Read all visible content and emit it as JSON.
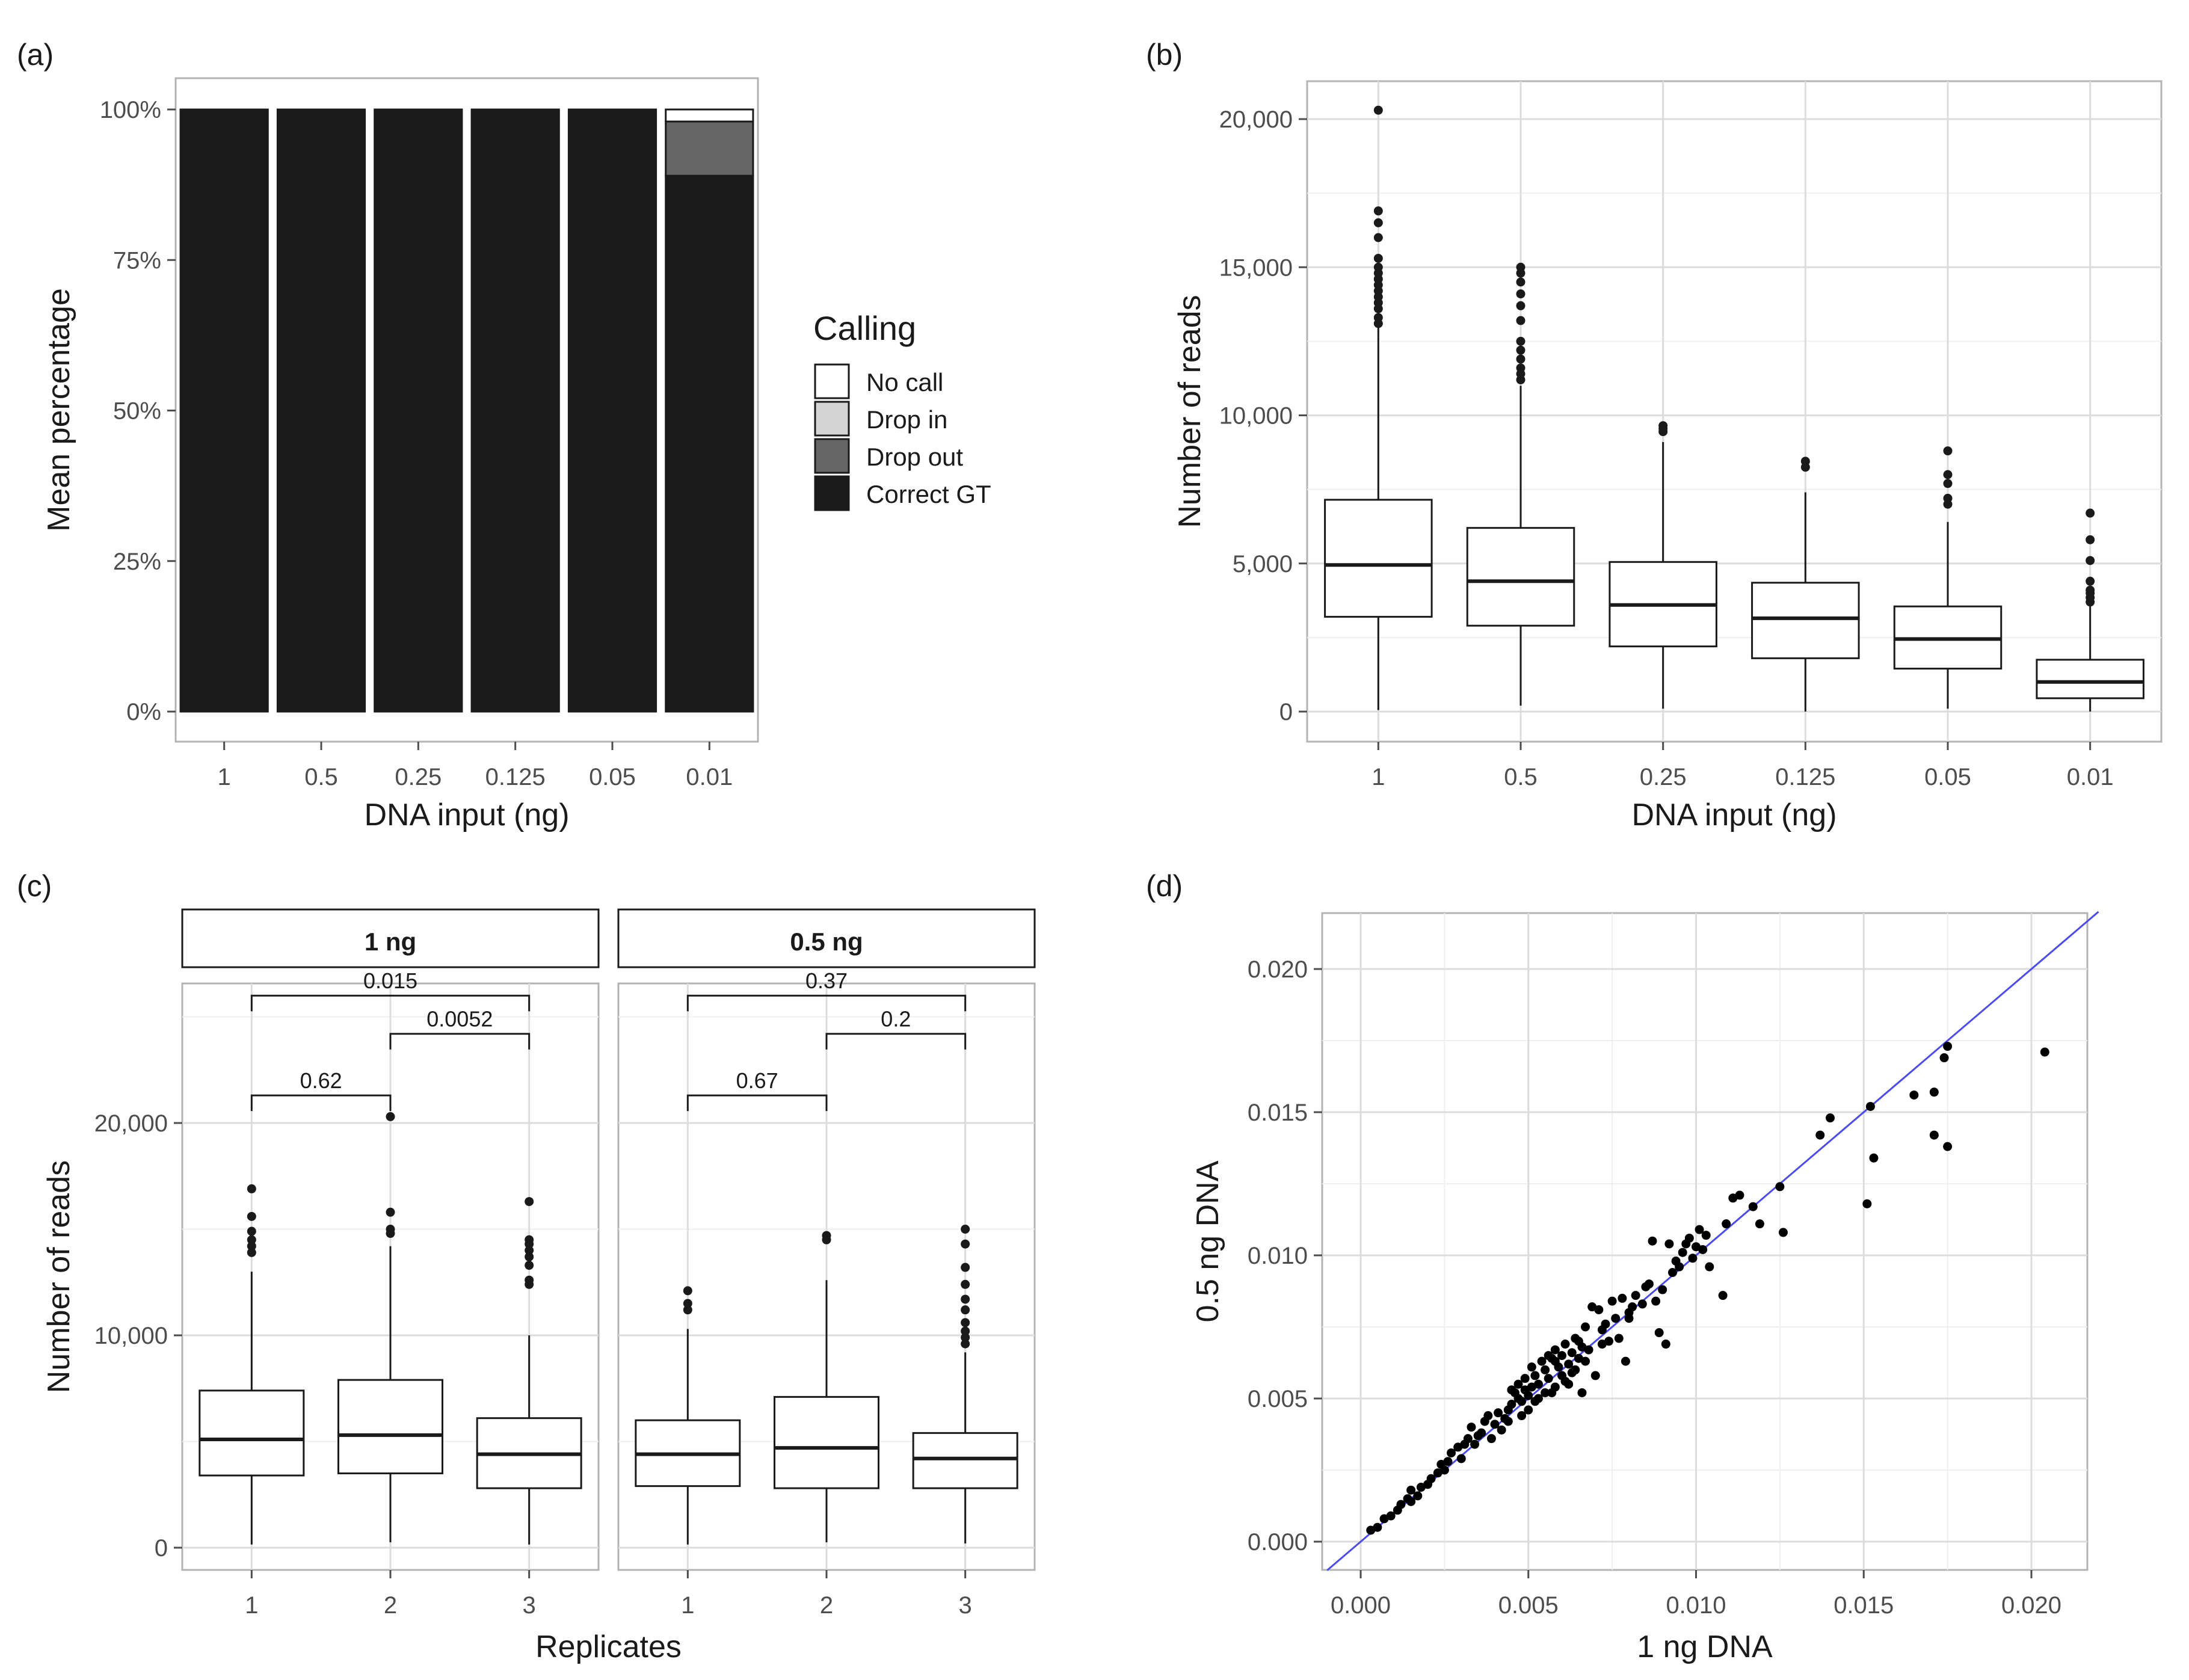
{
  "chart_data": [
    {
      "panel": "(a)",
      "type": "bar",
      "stacked": true,
      "xlabel": "DNA input (ng)",
      "ylabel": "Mean percentage",
      "categories": [
        "1",
        "0.5",
        "0.25",
        "0.125",
        "0.05",
        "0.01"
      ],
      "yticks": [
        "0%",
        "25%",
        "50%",
        "75%",
        "100%"
      ],
      "ylim": [
        0,
        100
      ],
      "legend_title": "Calling",
      "series": [
        {
          "name": "Correct GT",
          "color": "#1a1a1a",
          "values": [
            100,
            100,
            100,
            100,
            100,
            89
          ]
        },
        {
          "name": "Drop out",
          "color": "#666666",
          "values": [
            0,
            0,
            0,
            0,
            0,
            9
          ]
        },
        {
          "name": "Drop in",
          "color": "#d4d4d4",
          "values": [
            0,
            0,
            0,
            0,
            0,
            0
          ]
        },
        {
          "name": "No call",
          "color": "#ffffff",
          "values": [
            0,
            0,
            0,
            0,
            0,
            2
          ]
        }
      ],
      "legend": [
        "No call",
        "Drop in",
        "Drop out",
        "Correct GT"
      ]
    },
    {
      "panel": "(b)",
      "type": "box",
      "xlabel": "DNA input (ng)",
      "ylabel": "Number of reads",
      "ylim": [
        -900,
        21200
      ],
      "yticks": [
        0,
        5000,
        10000,
        15000,
        20000
      ],
      "ytick_labels": [
        "0",
        "5,000",
        "10,000",
        "15,000",
        "20,000"
      ],
      "categories": [
        "1",
        "0.5",
        "0.25",
        "0.125",
        "0.05",
        "0.01"
      ],
      "boxes": [
        {
          "q1": 3200,
          "median": 4950,
          "q3": 7150,
          "wlo": 50,
          "whi": 13000,
          "outliers": [
            13100,
            13300,
            13600,
            13800,
            14000,
            14200,
            14400,
            14600,
            14800,
            15000,
            15300,
            16000,
            16500,
            16900,
            20300
          ]
        },
        {
          "q1": 2900,
          "median": 4400,
          "q3": 6200,
          "wlo": 200,
          "whi": 11000,
          "outliers": [
            11200,
            11400,
            11600,
            11900,
            12200,
            12500,
            13200,
            13700,
            14100,
            14500,
            14800,
            15000
          ]
        },
        {
          "q1": 2200,
          "median": 3600,
          "q3": 5050,
          "wlo": 100,
          "whi": 9100,
          "outliers": [
            9450,
            9550,
            9650
          ]
        },
        {
          "q1": 1800,
          "median": 3150,
          "q3": 4350,
          "wlo": 0,
          "whi": 7400,
          "outliers": [
            8250,
            8450
          ]
        },
        {
          "q1": 1450,
          "median": 2450,
          "q3": 3550,
          "wlo": 100,
          "whi": 6400,
          "outliers": [
            7000,
            7200,
            7700,
            8000,
            8800
          ]
        },
        {
          "q1": 450,
          "median": 1000,
          "q3": 1750,
          "wlo": 0,
          "whi": 3600,
          "outliers": [
            3700,
            3850,
            4000,
            4100,
            4400,
            5100,
            5800,
            6700
          ]
        }
      ]
    },
    {
      "panel": "(c)",
      "type": "box",
      "xlabel": "Replicates",
      "ylabel": "Number of reads",
      "ylim": [
        -1100,
        27500
      ],
      "yticks": [
        0,
        10000,
        20000
      ],
      "ytick_labels": [
        "0",
        "10,000",
        "20,000"
      ],
      "facets": [
        {
          "title": "1 ng",
          "categories": [
            "1",
            "2",
            "3"
          ],
          "boxes": [
            {
              "q1": 3400,
              "median": 5100,
              "q3": 7400,
              "wlo": 150,
              "whi": 13000,
              "outliers": [
                13900,
                14200,
                14500,
                14900,
                15600,
                16900
              ]
            },
            {
              "q1": 3500,
              "median": 5300,
              "q3": 7900,
              "wlo": 250,
              "whi": 14200,
              "outliers": [
                14800,
                15000,
                15800,
                20300
              ]
            },
            {
              "q1": 2800,
              "median": 4400,
              "q3": 6100,
              "wlo": 150,
              "whi": 10000,
              "outliers": [
                12400,
                12600,
                13300,
                13700,
                14000,
                14300,
                14500,
                16300
              ]
            }
          ],
          "comparisons": [
            {
              "a": "1",
              "b": "2",
              "label": "0.62",
              "y": 21300
            },
            {
              "a": "2",
              "b": "3",
              "label": "0.0052",
              "y": 24200
            },
            {
              "a": "1",
              "b": "3",
              "label": "0.015",
              "y": 26000
            }
          ]
        },
        {
          "title": "0.5 ng",
          "categories": [
            "1",
            "2",
            "3"
          ],
          "boxes": [
            {
              "q1": 2900,
              "median": 4400,
              "q3": 6000,
              "wlo": 150,
              "whi": 10300,
              "outliers": [
                11200,
                11500,
                12100
              ]
            },
            {
              "q1": 2800,
              "median": 4700,
              "q3": 7100,
              "wlo": 250,
              "whi": 12600,
              "outliers": [
                14500,
                14700
              ]
            },
            {
              "q1": 2800,
              "median": 4200,
              "q3": 5400,
              "wlo": 200,
              "whi": 9200,
              "outliers": [
                9600,
                9900,
                10200,
                10600,
                11200,
                11700,
                12400,
                13200,
                14300,
                15000
              ]
            }
          ],
          "comparisons": [
            {
              "a": "1",
              "b": "2",
              "label": "0.67",
              "y": 21300
            },
            {
              "a": "2",
              "b": "3",
              "label": "0.2",
              "y": 24200
            },
            {
              "a": "1",
              "b": "3",
              "label": "0.37",
              "y": 26000
            }
          ]
        }
      ]
    },
    {
      "panel": "(d)",
      "type": "scatter",
      "xlabel": "1 ng DNA",
      "ylabel": "0.5 ng DNA",
      "xlim": [
        -0.001,
        0.022
      ],
      "ylim": [
        -0.001,
        0.022
      ],
      "xticks": [
        0.0,
        0.005,
        0.01,
        0.015,
        0.02
      ],
      "xtick_labels": [
        "0.000",
        "0.005",
        "0.010",
        "0.015",
        "0.020"
      ],
      "yticks": [
        0.0,
        0.005,
        0.01,
        0.015,
        0.02
      ],
      "ytick_labels": [
        "0.000",
        "0.005",
        "0.010",
        "0.015",
        "0.020"
      ],
      "fit_line": {
        "x": [
          -0.001,
          0.022
        ],
        "y": [
          -0.001,
          0.022
        ],
        "color": "#4a4af0"
      },
      "points": [
        [
          0.0003,
          0.0004
        ],
        [
          0.0005,
          0.0005
        ],
        [
          0.0007,
          0.0008
        ],
        [
          0.0009,
          0.0009
        ],
        [
          0.0011,
          0.0011
        ],
        [
          0.0012,
          0.0013
        ],
        [
          0.0014,
          0.0015
        ],
        [
          0.0015,
          0.0018
        ],
        [
          0.0017,
          0.0016
        ],
        [
          0.0018,
          0.0019
        ],
        [
          0.002,
          0.002
        ],
        [
          0.0021,
          0.0022
        ],
        [
          0.0023,
          0.0024
        ],
        [
          0.0024,
          0.0027
        ],
        [
          0.0026,
          0.0028
        ],
        [
          0.0027,
          0.0031
        ],
        [
          0.0029,
          0.0033
        ],
        [
          0.003,
          0.0029
        ],
        [
          0.0031,
          0.0034
        ],
        [
          0.0032,
          0.0036
        ],
        [
          0.0033,
          0.004
        ],
        [
          0.0035,
          0.0037
        ],
        [
          0.0036,
          0.0038
        ],
        [
          0.0037,
          0.0042
        ],
        [
          0.0038,
          0.0044
        ],
        [
          0.0039,
          0.0036
        ],
        [
          0.004,
          0.0041
        ],
        [
          0.0041,
          0.0045
        ],
        [
          0.0042,
          0.0039
        ],
        [
          0.0043,
          0.0043
        ],
        [
          0.0044,
          0.0046
        ],
        [
          0.0045,
          0.0048
        ],
        [
          0.0046,
          0.0052
        ],
        [
          0.0047,
          0.005
        ],
        [
          0.0047,
          0.0055
        ],
        [
          0.0048,
          0.0044
        ],
        [
          0.0049,
          0.0053
        ],
        [
          0.0049,
          0.0057
        ],
        [
          0.005,
          0.0046
        ],
        [
          0.005,
          0.0051
        ],
        [
          0.0051,
          0.0054
        ],
        [
          0.0051,
          0.0061
        ],
        [
          0.0052,
          0.0049
        ],
        [
          0.0052,
          0.0058
        ],
        [
          0.0053,
          0.0055
        ],
        [
          0.0054,
          0.0063
        ],
        [
          0.0055,
          0.0052
        ],
        [
          0.0055,
          0.006
        ],
        [
          0.0056,
          0.0057
        ],
        [
          0.0057,
          0.0064
        ],
        [
          0.0058,
          0.0054
        ],
        [
          0.0058,
          0.0067
        ],
        [
          0.0059,
          0.0061
        ],
        [
          0.006,
          0.0065
        ],
        [
          0.006,
          0.0058
        ],
        [
          0.0061,
          0.0069
        ],
        [
          0.0062,
          0.0062
        ],
        [
          0.0062,
          0.0055
        ],
        [
          0.0063,
          0.0066
        ],
        [
          0.0064,
          0.006
        ],
        [
          0.0064,
          0.0071
        ],
        [
          0.0065,
          0.0064
        ],
        [
          0.0066,
          0.0068
        ],
        [
          0.0066,
          0.0052
        ],
        [
          0.0067,
          0.0075
        ],
        [
          0.0068,
          0.0067
        ],
        [
          0.0069,
          0.0082
        ],
        [
          0.007,
          0.0058
        ],
        [
          0.0071,
          0.0081
        ],
        [
          0.0072,
          0.0069
        ],
        [
          0.0073,
          0.0076
        ],
        [
          0.0074,
          0.007
        ],
        [
          0.0075,
          0.0084
        ],
        [
          0.0076,
          0.0078
        ],
        [
          0.0077,
          0.0071
        ],
        [
          0.0078,
          0.0085
        ],
        [
          0.0079,
          0.0063
        ],
        [
          0.008,
          0.0078
        ],
        [
          0.0081,
          0.0082
        ],
        [
          0.0082,
          0.0086
        ],
        [
          0.0084,
          0.0083
        ],
        [
          0.0085,
          0.0089
        ],
        [
          0.0086,
          0.009
        ],
        [
          0.0087,
          0.0105
        ],
        [
          0.0088,
          0.0084
        ],
        [
          0.0089,
          0.0073
        ],
        [
          0.009,
          0.0088
        ],
        [
          0.0091,
          0.0069
        ],
        [
          0.0092,
          0.0104
        ],
        [
          0.0093,
          0.0094
        ],
        [
          0.0094,
          0.0098
        ],
        [
          0.0095,
          0.0096
        ],
        [
          0.0096,
          0.0101
        ],
        [
          0.0097,
          0.0104
        ],
        [
          0.0098,
          0.0106
        ],
        [
          0.0099,
          0.0099
        ],
        [
          0.01,
          0.0103
        ],
        [
          0.0101,
          0.0109
        ],
        [
          0.0102,
          0.0102
        ],
        [
          0.0103,
          0.0107
        ],
        [
          0.0104,
          0.0096
        ],
        [
          0.0108,
          0.0086
        ],
        [
          0.0109,
          0.0111
        ],
        [
          0.0111,
          0.012
        ],
        [
          0.0113,
          0.0121
        ],
        [
          0.0117,
          0.0117
        ],
        [
          0.0119,
          0.0111
        ],
        [
          0.0125,
          0.0124
        ],
        [
          0.0126,
          0.0108
        ],
        [
          0.0137,
          0.0142
        ],
        [
          0.014,
          0.0148
        ],
        [
          0.0151,
          0.0118
        ],
        [
          0.0152,
          0.0152
        ],
        [
          0.0153,
          0.0134
        ],
        [
          0.0165,
          0.0156
        ],
        [
          0.0171,
          0.0157
        ],
        [
          0.0171,
          0.0142
        ],
        [
          0.0174,
          0.0169
        ],
        [
          0.0175,
          0.0138
        ],
        [
          0.0175,
          0.0173
        ],
        [
          0.0204,
          0.0171
        ],
        [
          0.0015,
          0.0014
        ],
        [
          0.0025,
          0.0025
        ],
        [
          0.0034,
          0.0034
        ],
        [
          0.0044,
          0.0042
        ],
        [
          0.0053,
          0.005
        ],
        [
          0.0057,
          0.0052
        ],
        [
          0.0063,
          0.0059
        ],
        [
          0.0067,
          0.0063
        ],
        [
          0.0072,
          0.0074
        ],
        [
          0.008,
          0.008
        ],
        [
          0.0056,
          0.0065
        ],
        [
          0.0045,
          0.0053
        ],
        [
          0.0048,
          0.0049
        ],
        [
          0.0058,
          0.0063
        ],
        [
          0.0061,
          0.0056
        ],
        [
          0.0065,
          0.007
        ]
      ]
    }
  ],
  "panel_labels": [
    "(a)",
    "(b)",
    "(c)",
    "(d)"
  ]
}
